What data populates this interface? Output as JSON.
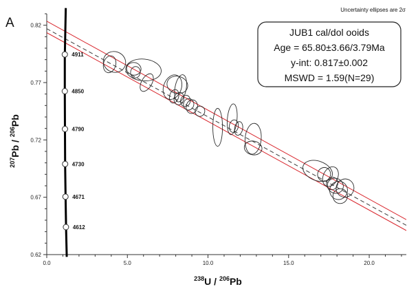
{
  "chart_data": {
    "type": "scatter",
    "panel_label": "A",
    "note": "Uncertainty ellipses are 2σ",
    "xlabel": {
      "base": "U / ",
      "base_sup": "238",
      "end": "Pb",
      "end_sup": "206"
    },
    "ylabel": {
      "base": "Pb / ",
      "base_sup": "207",
      "end": "Pb",
      "end_sup": "206"
    },
    "xlim": [
      0,
      22.3
    ],
    "ylim": [
      0.62,
      0.83
    ],
    "x_ticks": [
      {
        "value": 0,
        "label": "0.0"
      },
      {
        "value": 5,
        "label": "5.0"
      },
      {
        "value": 10,
        "label": "10.0"
      },
      {
        "value": 15,
        "label": "15.0"
      },
      {
        "value": 20,
        "label": "20.0"
      }
    ],
    "y_ticks": [
      {
        "value": 0.62,
        "label": "0.62"
      },
      {
        "value": 0.67,
        "label": "0.67"
      },
      {
        "value": 0.72,
        "label": "0.72"
      },
      {
        "value": 0.77,
        "label": "0.77"
      },
      {
        "value": 0.82,
        "label": "0.82"
      }
    ],
    "stats_box": {
      "lines": [
        "JUB1 cal/dol ooids",
        "Age = 65.80±3.66/3.79Ma",
        "y-int: 0.817±0.002",
        "MSWD = 1.59(N=29)"
      ]
    },
    "regression": {
      "center": {
        "x0": 0,
        "y0": 0.817,
        "x1": 22.3,
        "y1": 0.6455
      },
      "upper": {
        "x0": 0,
        "y0": 0.8235,
        "x1": 22.3,
        "y1": 0.6505
      },
      "lower": {
        "x0": 0,
        "y0": 0.8135,
        "x1": 22.3,
        "y1": 0.641
      }
    },
    "concordia_curve": {
      "points": [
        {
          "x": 1.18,
          "y": 0.835
        },
        {
          "x": 1.12,
          "y": 0.793
        },
        {
          "x": 1.12,
          "y": 0.761
        },
        {
          "x": 1.13,
          "y": 0.728
        },
        {
          "x": 1.14,
          "y": 0.698
        },
        {
          "x": 1.17,
          "y": 0.668
        },
        {
          "x": 1.2,
          "y": 0.642
        },
        {
          "x": 1.24,
          "y": 0.618
        }
      ],
      "age_markers": [
        {
          "x": 1.12,
          "y": 0.7945,
          "label": "4911"
        },
        {
          "x": 1.12,
          "y": 0.7625,
          "label": "4850"
        },
        {
          "x": 1.13,
          "y": 0.7295,
          "label": "4790"
        },
        {
          "x": 1.14,
          "y": 0.699,
          "label": "4730"
        },
        {
          "x": 1.16,
          "y": 0.6705,
          "label": "4671"
        },
        {
          "x": 1.19,
          "y": 0.644,
          "label": "4612"
        }
      ]
    },
    "ellipses": [
      {
        "x": 3.9,
        "y": 0.786,
        "rx": 0.38,
        "ry": 0.0075,
        "angle": 15
      },
      {
        "x": 4.2,
        "y": 0.788,
        "rx": 0.7,
        "ry": 0.009,
        "angle": 20
      },
      {
        "x": 5.4,
        "y": 0.782,
        "rx": 0.45,
        "ry": 0.0055,
        "angle": 10
      },
      {
        "x": 6.0,
        "y": 0.781,
        "rx": 1.1,
        "ry": 0.0095,
        "angle": 5
      },
      {
        "x": 6.2,
        "y": 0.77,
        "rx": 0.32,
        "ry": 0.0085,
        "angle": 30
      },
      {
        "x": 7.8,
        "y": 0.766,
        "rx": 0.55,
        "ry": 0.011,
        "angle": 20
      },
      {
        "x": 8.1,
        "y": 0.768,
        "rx": 0.65,
        "ry": 0.0075,
        "angle": 15
      },
      {
        "x": 8.3,
        "y": 0.765,
        "rx": 0.35,
        "ry": 0.012,
        "angle": 10
      },
      {
        "x": 7.9,
        "y": 0.758,
        "rx": 0.28,
        "ry": 0.006,
        "angle": 15
      },
      {
        "x": 8.2,
        "y": 0.756,
        "rx": 0.3,
        "ry": 0.0055,
        "angle": 15
      },
      {
        "x": 8.8,
        "y": 0.751,
        "rx": 0.32,
        "ry": 0.005,
        "angle": 10
      },
      {
        "x": 9.0,
        "y": 0.749,
        "rx": 0.35,
        "ry": 0.006,
        "angle": 12
      },
      {
        "x": 9.5,
        "y": 0.745,
        "rx": 0.3,
        "ry": 0.0045,
        "angle": 10
      },
      {
        "x": 10.6,
        "y": 0.731,
        "rx": 0.3,
        "ry": 0.0165,
        "angle": 0
      },
      {
        "x": 11.5,
        "y": 0.738,
        "rx": 0.3,
        "ry": 0.0135,
        "angle": 5
      },
      {
        "x": 11.6,
        "y": 0.732,
        "rx": 0.28,
        "ry": 0.0055,
        "angle": 10
      },
      {
        "x": 11.9,
        "y": 0.73,
        "rx": 0.25,
        "ry": 0.006,
        "angle": 10
      },
      {
        "x": 12.8,
        "y": 0.721,
        "rx": 0.5,
        "ry": 0.0135,
        "angle": 5
      },
      {
        "x": 12.8,
        "y": 0.713,
        "rx": 0.55,
        "ry": 0.006,
        "angle": 10
      },
      {
        "x": 16.8,
        "y": 0.693,
        "rx": 0.95,
        "ry": 0.0085,
        "angle": 20
      },
      {
        "x": 17.6,
        "y": 0.688,
        "rx": 0.45,
        "ry": 0.009,
        "angle": 25
      },
      {
        "x": 17.7,
        "y": 0.682,
        "rx": 0.35,
        "ry": 0.0055,
        "angle": 20
      },
      {
        "x": 17.9,
        "y": 0.68,
        "rx": 0.5,
        "ry": 0.0065,
        "angle": 25
      },
      {
        "x": 18.1,
        "y": 0.676,
        "rx": 0.55,
        "ry": 0.008,
        "angle": 15
      },
      {
        "x": 18.5,
        "y": 0.678,
        "rx": 0.55,
        "ry": 0.008,
        "angle": 20
      },
      {
        "x": 18.2,
        "y": 0.671,
        "rx": 0.45,
        "ry": 0.0065,
        "angle": 15
      },
      {
        "x": 17.2,
        "y": 0.69,
        "rx": 0.4,
        "ry": 0.006,
        "angle": 20
      },
      {
        "x": 5.5,
        "y": 0.779,
        "rx": 0.3,
        "ry": 0.005,
        "angle": 10
      },
      {
        "x": 8.6,
        "y": 0.754,
        "rx": 0.3,
        "ry": 0.005,
        "angle": 15
      }
    ],
    "colors": {
      "regression": "#d9272e",
      "dashed": "#3a3a3a",
      "ellipse": "#2b2b2b",
      "concordia": "#000000",
      "marker_fill": "#ffffff"
    }
  }
}
